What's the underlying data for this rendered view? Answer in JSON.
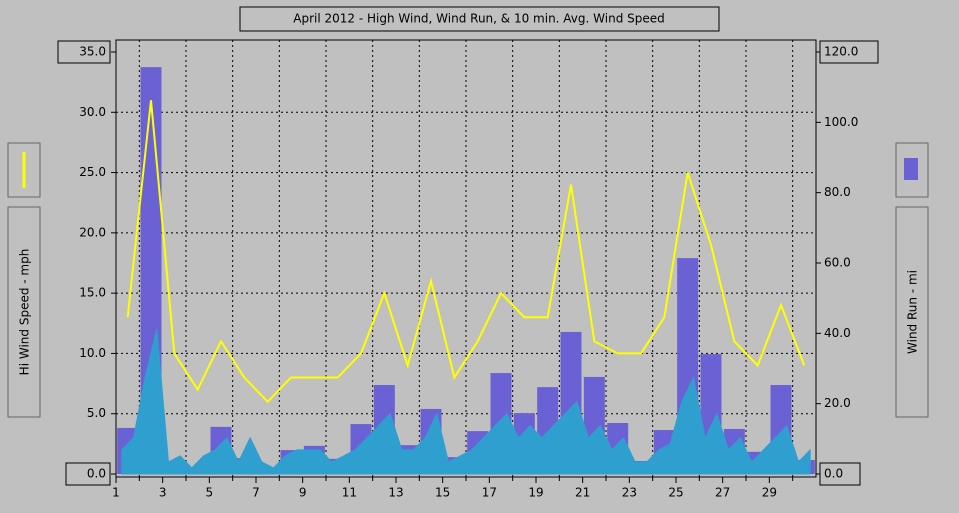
{
  "chart_data": {
    "type": "combo",
    "title": "April 2012 - High Wind, Wind Run, & 10 min. Avg. Wind Speed",
    "y_label": "Hi Wind Speed - mph",
    "y2_label": "Wind Run - mi",
    "xlim": [
      1,
      31
    ],
    "xticks": [
      1,
      3,
      5,
      7,
      9,
      11,
      13,
      15,
      17,
      19,
      21,
      23,
      25,
      27,
      29
    ],
    "x_minor_ticks": [
      2,
      4,
      6,
      8,
      10,
      12,
      14,
      16,
      18,
      20,
      22,
      24,
      26,
      28,
      30
    ],
    "ylim": [
      0,
      35
    ],
    "yticks": [
      {
        "value": 0,
        "label": "0.0"
      },
      {
        "value": 5,
        "label": "5.0"
      },
      {
        "value": 10,
        "label": "10.0"
      },
      {
        "value": 15,
        "label": "15.0"
      },
      {
        "value": 20,
        "label": "20.0"
      },
      {
        "value": 25,
        "label": "25.0"
      },
      {
        "value": 30,
        "label": "30.0"
      },
      {
        "value": 35,
        "label": "35.0"
      }
    ],
    "y2lim": [
      0,
      120
    ],
    "y2ticks": [
      {
        "value": 0,
        "label": "0.0"
      },
      {
        "value": 20,
        "label": "20.0"
      },
      {
        "value": 40,
        "label": "40.0"
      },
      {
        "value": 60,
        "label": "60.0"
      },
      {
        "value": 80,
        "label": "80.0"
      },
      {
        "value": 100,
        "label": "100.0"
      },
      {
        "value": 120,
        "label": "120.0"
      }
    ],
    "grid": true,
    "series": [
      {
        "type": "bar",
        "axis": "y2",
        "color": "#6a62d4",
        "x": [
          1.5,
          2.5,
          3.5,
          4.5,
          5.5,
          6.5,
          7.5,
          8.5,
          9.5,
          10.5,
          11.5,
          12.5,
          13.5,
          14.5,
          15.5,
          16.5,
          17.5,
          18.5,
          19.5,
          20.5,
          21.5,
          22.5,
          23.5,
          24.5,
          25.5,
          26.5,
          27.5,
          28.5,
          29.5,
          30.5
        ],
        "values": [
          13.1,
          115.7,
          3.4,
          1.7,
          13.4,
          4.5,
          1.7,
          6.8,
          8,
          4.3,
          14.2,
          25.3,
          8.2,
          18.5,
          4.8,
          12.2,
          28.7,
          17.3,
          24.7,
          40.4,
          27.6,
          14.5,
          3.7,
          12.5,
          61.4,
          34.1,
          12.8,
          6.3,
          25.3,
          4
        ]
      },
      {
        "type": "area",
        "color": "#2f9fd0",
        "x": [
          1.25,
          1.75,
          2.25,
          2.75,
          3.25,
          3.75,
          4.25,
          4.75,
          5.25,
          5.75,
          6.25,
          6.75,
          7.25,
          7.75,
          8.25,
          8.75,
          9.25,
          9.75,
          10.25,
          10.75,
          11.25,
          11.75,
          12.25,
          12.75,
          13.25,
          13.75,
          14.25,
          14.75,
          15.25,
          15.75,
          16.25,
          16.75,
          17.25,
          17.75,
          18.25,
          18.75,
          19.25,
          19.75,
          20.25,
          20.75,
          21.25,
          21.75,
          22.25,
          22.75,
          23.25,
          23.75,
          24.25,
          24.75,
          25.25,
          25.75,
          26.25,
          26.75,
          27.25,
          27.75,
          28.25,
          28.75,
          29.25,
          29.75,
          30.25,
          30.75
        ],
        "values": [
          2,
          3,
          8,
          12,
          1,
          1.5,
          0.5,
          1.5,
          2,
          3,
          1,
          3,
          1,
          0.5,
          1.5,
          2,
          2,
          2,
          1,
          1.5,
          2,
          3,
          4,
          5,
          2,
          2,
          3,
          5,
          1,
          1.5,
          2,
          3,
          4,
          5,
          3,
          4,
          3,
          4,
          5,
          6,
          3,
          4,
          2,
          3,
          1,
          1,
          2,
          2.5,
          6,
          8,
          3,
          5,
          2,
          3,
          1,
          2,
          3,
          4,
          1,
          2
        ]
      },
      {
        "type": "line",
        "color": "#ffff00",
        "x": [
          1.5,
          2.5,
          3.5,
          4.5,
          5.5,
          6.5,
          7.5,
          8.5,
          9.5,
          10.5,
          11.5,
          12.5,
          13.5,
          14.5,
          15.5,
          16.5,
          17.5,
          18.5,
          19.5,
          20.5,
          21.5,
          22.5,
          23.5,
          24.5,
          25.5,
          26.5,
          27.5,
          28.5,
          29.5,
          30.5
        ],
        "values": [
          13,
          31,
          10,
          7,
          11,
          8,
          6,
          8,
          8,
          8,
          10,
          15,
          9,
          16,
          8,
          11,
          15,
          13,
          13,
          24,
          11,
          10,
          10,
          13,
          25,
          19,
          11,
          9,
          14,
          9
        ]
      }
    ]
  }
}
